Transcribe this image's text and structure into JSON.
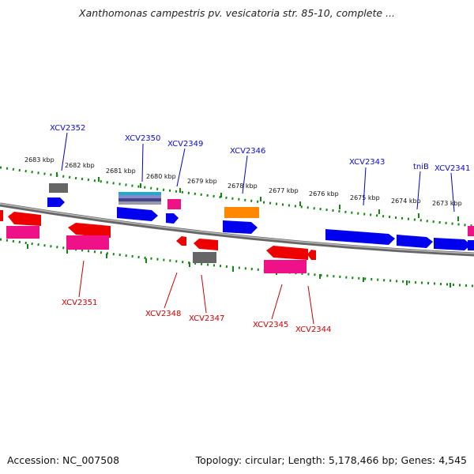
{
  "title": "Xanthomonas campestris pv. vesicatoria str. 85-10, complete ...",
  "footer": {
    "accession": "Accession: NC_007508",
    "summary": "Topology: circular; Length: 5,178,466 bp; Genes: 4,545"
  },
  "ruler_labels": [
    "2683 kbp",
    "2682 kbp",
    "2681 kbp",
    "2680 kbp",
    "2679 kbp",
    "2678 kbp",
    "2677 kbp",
    "2676 kbp",
    "2675 kbp",
    "2674 kbp",
    "2673 kbp"
  ],
  "forward_genes": [
    "XCV2352",
    "XCV2350",
    "XCV2349",
    "XCV2346",
    "XCV2343",
    "tniB",
    "XCV2341"
  ],
  "reverse_genes": [
    "XCV2351",
    "XCV2348",
    "XCV2347",
    "XCV2345",
    "XCV2344"
  ],
  "colors": {
    "forward": "#0000ee",
    "reverse": "#ee0000",
    "pink": "#ee1188",
    "gray": "#666666",
    "orange": "#ff8800",
    "teal": "#22aacc",
    "ruler": "#118811",
    "backbone": "#777777"
  }
}
